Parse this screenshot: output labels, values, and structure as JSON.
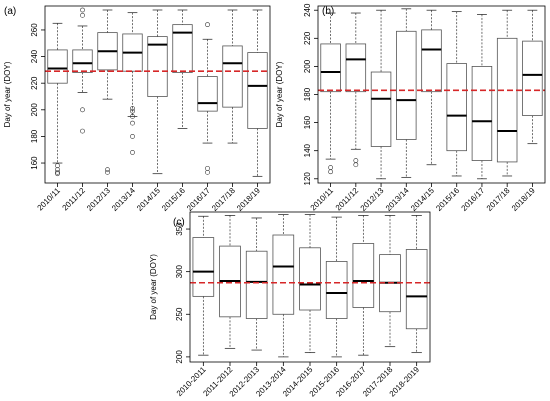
{
  "chart_data": [
    {
      "type": "box",
      "panel_label": "(a)",
      "ylabel": "Day of year (DOY)",
      "yticks": [
        160,
        180,
        200,
        220,
        240,
        260
      ],
      "ylim": [
        145,
        278
      ],
      "reference_line": 229,
      "reference_color": "#d62728",
      "categories": [
        "2010/11",
        "2011/12",
        "2012/13",
        "2013/14",
        "2014/15",
        "2015/16",
        "2016/17",
        "2017/18",
        "2018/19"
      ],
      "boxes": [
        {
          "min": 160,
          "q1": 220,
          "median": 231,
          "q3": 245,
          "max": 265,
          "outliers": [
            158,
            155,
            153,
            152
          ]
        },
        {
          "min": 213,
          "q1": 228,
          "median": 235,
          "q3": 245,
          "max": 263,
          "outliers": [
            275,
            271,
            200,
            184
          ]
        },
        {
          "min": 208,
          "q1": 230,
          "median": 244,
          "q3": 258,
          "max": 275,
          "outliers": [
            155,
            153
          ]
        },
        {
          "min": 195,
          "q1": 229,
          "median": 243,
          "q3": 257,
          "max": 273,
          "outliers": [
            201,
            199,
            195,
            190,
            180,
            168
          ]
        },
        {
          "min": 152,
          "q1": 210,
          "median": 249,
          "q3": 255,
          "max": 275,
          "outliers": []
        },
        {
          "min": 186,
          "q1": 228,
          "median": 258,
          "q3": 264,
          "max": 275,
          "outliers": []
        },
        {
          "min": 175,
          "q1": 199,
          "median": 205,
          "q3": 225,
          "max": 253,
          "outliers": [
            264,
            156,
            153
          ]
        },
        {
          "min": 175,
          "q1": 202,
          "median": 235,
          "q3": 248,
          "max": 275,
          "outliers": []
        },
        {
          "min": 150,
          "q1": 186,
          "median": 218,
          "q3": 243,
          "max": 275,
          "outliers": []
        }
      ]
    },
    {
      "type": "box",
      "panel_label": "(b)",
      "ylabel": "Day of year (DOY)",
      "yticks": [
        120,
        140,
        160,
        180,
        200,
        220,
        240
      ],
      "ylim": [
        117,
        243
      ],
      "reference_line": 183,
      "reference_color": "#d62728",
      "categories": [
        "2010/11",
        "2011/12",
        "2012/13",
        "2013/14",
        "2014/15",
        "2015/16",
        "2016/17",
        "2017/18",
        "2018/19"
      ],
      "boxes": [
        {
          "min": 134,
          "q1": 182,
          "median": 196,
          "q3": 216,
          "max": 238,
          "outliers": [
            128,
            125
          ]
        },
        {
          "min": 141,
          "q1": 182,
          "median": 205,
          "q3": 216,
          "max": 238,
          "outliers": [
            133,
            130
          ]
        },
        {
          "min": 120,
          "q1": 143,
          "median": 177,
          "q3": 196,
          "max": 240,
          "outliers": []
        },
        {
          "min": 121,
          "q1": 148,
          "median": 176,
          "q3": 225,
          "max": 241,
          "outliers": []
        },
        {
          "min": 130,
          "q1": 182,
          "median": 212,
          "q3": 226,
          "max": 240,
          "outliers": []
        },
        {
          "min": 122,
          "q1": 140,
          "median": 165,
          "q3": 202,
          "max": 239,
          "outliers": []
        },
        {
          "min": 120,
          "q1": 133,
          "median": 161,
          "q3": 200,
          "max": 237,
          "outliers": []
        },
        {
          "min": 122,
          "q1": 132,
          "median": 154,
          "q3": 220,
          "max": 240,
          "outliers": []
        },
        {
          "min": 145,
          "q1": 165,
          "median": 194,
          "q3": 218,
          "max": 240,
          "outliers": []
        }
      ]
    },
    {
      "type": "box",
      "panel_label": "(c)",
      "ylabel": "Day of year (DOY)",
      "yticks": [
        200,
        250,
        300,
        350
      ],
      "ylim": [
        194,
        370
      ],
      "reference_line": 287,
      "reference_color": "#d62728",
      "categories": [
        "2010-2011",
        "2011-2012",
        "2012-2013",
        "2013-2014",
        "2014-2015",
        "2015-2016",
        "2016-2017",
        "2017-2018",
        "2018-2019"
      ],
      "boxes": [
        {
          "min": 202,
          "q1": 271,
          "median": 300,
          "q3": 340,
          "max": 365,
          "outliers": []
        },
        {
          "min": 210,
          "q1": 247,
          "median": 289,
          "q3": 330,
          "max": 366,
          "outliers": []
        },
        {
          "min": 208,
          "q1": 245,
          "median": 288,
          "q3": 324,
          "max": 363,
          "outliers": []
        },
        {
          "min": 200,
          "q1": 250,
          "median": 306,
          "q3": 343,
          "max": 367,
          "outliers": []
        },
        {
          "min": 205,
          "q1": 255,
          "median": 285,
          "q3": 328,
          "max": 367,
          "outliers": []
        },
        {
          "min": 200,
          "q1": 245,
          "median": 275,
          "q3": 312,
          "max": 364,
          "outliers": []
        },
        {
          "min": 202,
          "q1": 258,
          "median": 289,
          "q3": 333,
          "max": 366,
          "outliers": []
        },
        {
          "min": 212,
          "q1": 253,
          "median": 287,
          "q3": 320,
          "max": 366,
          "outliers": []
        },
        {
          "min": 205,
          "q1": 233,
          "median": 271,
          "q3": 326,
          "max": 366,
          "outliers": []
        }
      ]
    }
  ]
}
